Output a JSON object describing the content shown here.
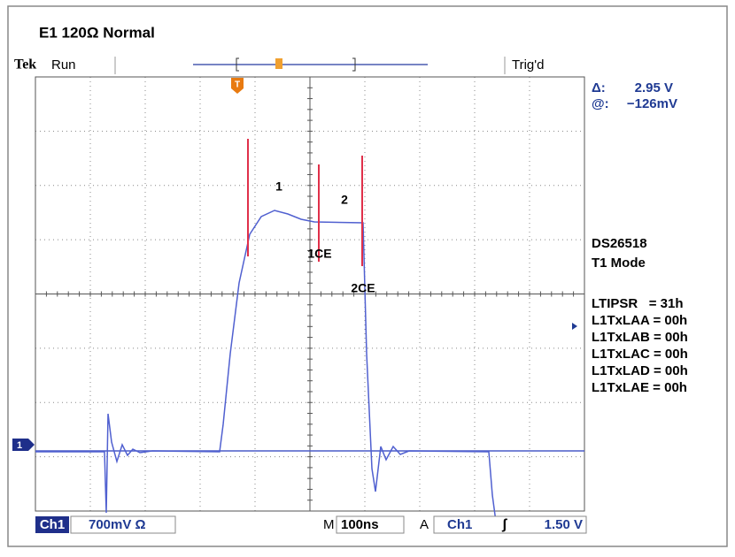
{
  "header": {
    "title": "E1 120Ω Normal"
  },
  "status": {
    "brand": "Tek",
    "state": "Run",
    "trigger": "Trig'd"
  },
  "markers": {
    "trigger": "T",
    "channel": "1"
  },
  "cursor": {
    "delta_label": "Δ:",
    "delta": "2.95 V",
    "at_label": "@:",
    "at": "−126mV"
  },
  "device": {
    "name": "DS26518",
    "mode": "T1 Mode"
  },
  "registers": [
    "LTIPSR   = 31h",
    "L1TxLAA = 00h",
    "L1TxLAB = 00h",
    "L1TxLAC = 00h",
    "L1TxLAD = 00h",
    "L1TxLAE = 00h"
  ],
  "annotations": {
    "segment1": "1",
    "segment2": "2",
    "end1": "1CE",
    "end2": "2CE"
  },
  "footer": {
    "channel": "Ch1",
    "scale": "700mV Ω",
    "time_label": "M",
    "timebase": "100ns",
    "trigger_label": "A",
    "trigger_source": "Ch1",
    "trigger_slope": "ʃ",
    "trigger_level": "1.50 V"
  }
}
